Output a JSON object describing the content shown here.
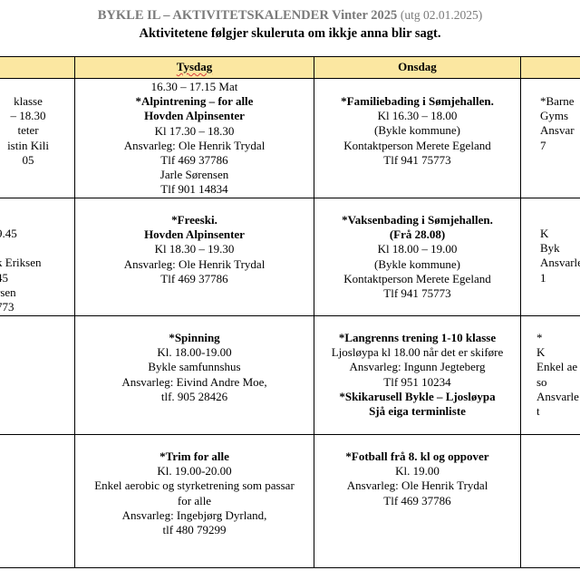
{
  "document": {
    "title": "BYKLE IL – AKTIVITETSKALENDER Vinter 2025",
    "title_note": "(utg 02.01.2025)",
    "subtitle": "Aktivitetene følgjer skuleruta om ikkje anna blir sagt."
  },
  "headers": {
    "tysdag": "Tysdag",
    "onsdag": "Onsdag"
  },
  "left_column": {
    "row1": [
      "klasse",
      "– 18.30",
      "teter",
      "istin Kili",
      "05"
    ],
    "row2": [
      "9.45",
      "",
      "k Eriksen",
      "45",
      "rsen",
      "773"
    ]
  },
  "tysdag": {
    "row1": {
      "lines": [
        {
          "text": "16.30 – 17.15 Mat",
          "bold": false
        },
        {
          "text": "*Alpintrening – for alle",
          "bold": true
        },
        {
          "text": "Hovden Alpinsenter",
          "bold": true
        },
        {
          "text": "Kl 17.30 – 18.30",
          "bold": false
        },
        {
          "text": "Ansvarleg: Ole Henrik Trydal",
          "bold": false
        },
        {
          "text": "Tlf 469 37786",
          "bold": false
        },
        {
          "text": "Jarle Sørensen",
          "bold": false
        },
        {
          "text": "Tlf 901 14834",
          "bold": false
        }
      ]
    },
    "row2": {
      "lines": [
        {
          "text": "*Freeski.",
          "bold": true
        },
        {
          "text": "Hovden Alpinsenter",
          "bold": true
        },
        {
          "text": "Kl 18.30 – 19.30",
          "bold": false
        },
        {
          "text": "Ansvarleg: Ole Henrik Trydal",
          "bold": false
        },
        {
          "text": "Tlf 469 37786",
          "bold": false
        }
      ]
    },
    "row3": {
      "lines": [
        {
          "text": "*Spinning",
          "bold": true
        },
        {
          "text": "Kl. 18.00-19.00",
          "bold": false
        },
        {
          "text": "Bykle samfunnshus",
          "bold": false
        },
        {
          "text": "Ansvarleg: Eivind Andre Moe,",
          "bold": false
        },
        {
          "text": "tlf. 905 28426",
          "bold": false
        }
      ]
    },
    "row4": {
      "lines": [
        {
          "text": "*Trim for alle",
          "bold": true
        },
        {
          "text": "Kl. 19.00-20.00",
          "bold": false
        },
        {
          "text": "Enkel aerobic og styrketrening som passar",
          "bold": false
        },
        {
          "text": "for alle",
          "bold": false
        },
        {
          "text": "Ansvarleg: Ingebjørg Dyrland,",
          "bold": false
        },
        {
          "text": "tlf 480 79299",
          "bold": false
        }
      ]
    }
  },
  "onsdag": {
    "row1": {
      "lines": [
        {
          "text": "*Familiebading i Sømjehallen.",
          "bold": true
        },
        {
          "text": "Kl 16.30 – 18.00",
          "bold": false
        },
        {
          "text": "(Bykle kommune)",
          "bold": false
        },
        {
          "text": "Kontaktperson Merete Egeland",
          "bold": false
        },
        {
          "text": "Tlf 941 75773",
          "bold": false
        }
      ]
    },
    "row2": {
      "lines": [
        {
          "text": "*Vaksenbading i Sømjehallen.",
          "bold": true
        },
        {
          "text": "(Frå 28.08)",
          "bold": true
        },
        {
          "text": "Kl 18.00 – 19.00",
          "bold": false
        },
        {
          "text": "(Bykle kommune)",
          "bold": false
        },
        {
          "text": "Kontaktperson Merete Egeland",
          "bold": false
        },
        {
          "text": "Tlf 941 75773",
          "bold": false
        }
      ]
    },
    "row3": {
      "lines": [
        {
          "text": "*Langrenns trening 1-10 klasse",
          "bold": true
        },
        {
          "text": "Ljosløypa kl 18.00 når det er skiføre",
          "bold": false
        },
        {
          "text": "Ansvarleg: Ingunn Jegteberg",
          "bold": false
        },
        {
          "text": "Tlf 951 10234",
          "bold": false
        },
        {
          "text": "*Skikarusell Bykle – Ljosløypa",
          "bold": true
        },
        {
          "text": "Sjå eiga terminliste",
          "bold": true
        }
      ]
    },
    "row4": {
      "lines": [
        {
          "text": "*Fotball frå 8. kl og oppover",
          "bold": true
        },
        {
          "text": "Kl. 19.00",
          "bold": false
        },
        {
          "text": "Ansvarleg: Ole Henrik Trydal",
          "bold": false
        },
        {
          "text": "Tlf 469 37786",
          "bold": false
        }
      ]
    }
  },
  "right_column": {
    "row1": [
      "*Barne",
      "Gyms",
      "Ansvar",
      "7"
    ],
    "row2": [
      "K",
      "Byk",
      "Ansvarle",
      "1"
    ],
    "row3": [
      "*",
      "K",
      "Enkel ae",
      "so",
      "Ansvarle",
      "t"
    ],
    "row4": []
  }
}
